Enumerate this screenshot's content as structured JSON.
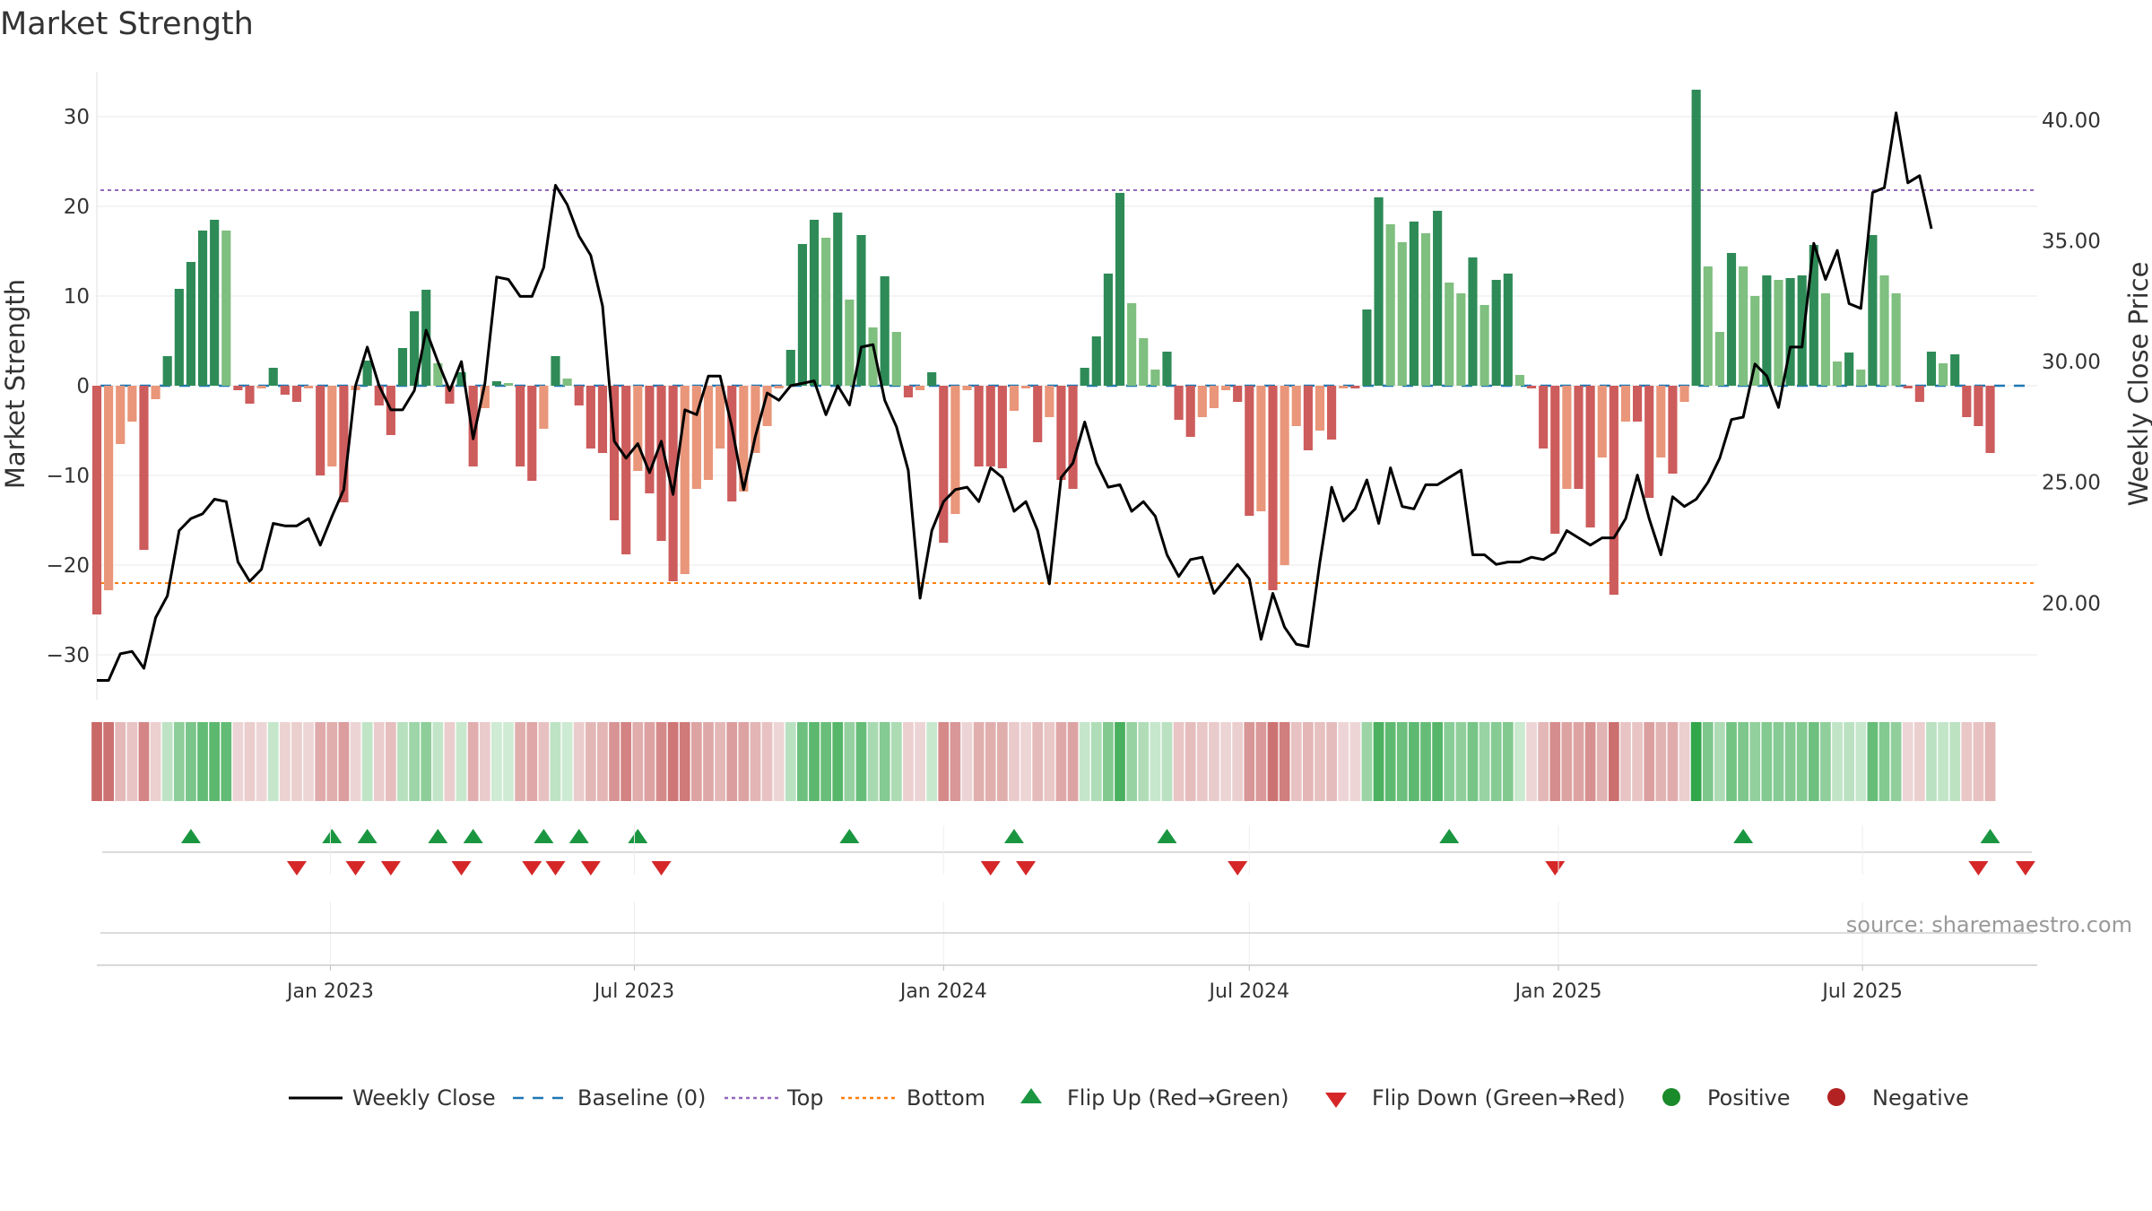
{
  "chart_data": {
    "type": "bar",
    "title": "Market Strength",
    "ylabel": "Market Strength",
    "y2label": "Weekly Close Price",
    "ylim": [
      -35,
      35
    ],
    "y2lim": [
      16,
      42
    ],
    "y_ticks": [
      30,
      20,
      10,
      0,
      -10,
      -20,
      -30
    ],
    "y_tick_labels": [
      "30",
      "20",
      "10",
      "0",
      "−10",
      "−20",
      "−30"
    ],
    "y2_ticks": [
      40,
      35,
      30,
      25,
      20
    ],
    "y2_tick_labels": [
      "40.00",
      "35.00",
      "30.00",
      "25.00",
      "20.00"
    ],
    "x_range": [
      "2022-08-15",
      "2025-10-13"
    ],
    "x_ticks": [
      "2023-01-01",
      "2023-07-01",
      "2024-01-01",
      "2024-07-01",
      "2025-01-01",
      "2025-07-01"
    ],
    "x_tick_labels": [
      "Jan 2023",
      "Jul 2023",
      "Jan 2024",
      "Jul 2024",
      "Jan 2025",
      "Jul 2025"
    ],
    "top_level": 21.8,
    "bottom_level": -22.0,
    "baseline": 0,
    "start_date": "2022-08-15",
    "week_step": 1,
    "strength": [
      -25.5,
      -22.8,
      -6.5,
      -4.0,
      -18.3,
      -1.5,
      3.3,
      10.8,
      13.8,
      17.3,
      18.5,
      17.3,
      -0.5,
      -2.0,
      -0.3,
      2.0,
      -1.0,
      -1.8,
      -0.3,
      -10.0,
      -9.0,
      -13.0,
      -0.5,
      2.8,
      -2.2,
      -5.5,
      4.2,
      8.3,
      10.7,
      2.5,
      -2.0,
      1.5,
      -9.0,
      -2.5,
      0.5,
      0.3,
      -9.0,
      -10.6,
      -4.8,
      3.3,
      0.8,
      -2.2,
      -7.0,
      -7.5,
      -15.0,
      -18.8,
      -9.5,
      -12.0,
      -17.3,
      -21.8,
      -21.0,
      -11.5,
      -10.5,
      -7.0,
      -12.9,
      -11.8,
      -7.5,
      -4.5,
      -0.3,
      4.0,
      15.8,
      18.5,
      16.5,
      19.3,
      9.6,
      16.8,
      6.5,
      12.2,
      6.0,
      -1.3,
      -0.5,
      1.5,
      -17.5,
      -14.3,
      -0.5,
      -9.0,
      -9.0,
      -9.2,
      -2.8,
      -0.3,
      -6.3,
      -3.5,
      -10.5,
      -11.5,
      2.0,
      5.5,
      12.5,
      21.5,
      9.2,
      5.3,
      1.8,
      3.8,
      -3.8,
      -5.7,
      -3.5,
      -2.5,
      -0.5,
      -1.8,
      -14.5,
      -14.0,
      -22.8,
      -20.0,
      -4.5,
      -7.2,
      -5.0,
      -6.0,
      -0.3,
      -0.3,
      8.5,
      21.0,
      18.0,
      16.0,
      18.3,
      17.0,
      19.5,
      11.5,
      10.3,
      14.3,
      9.0,
      11.8,
      12.5,
      1.2,
      -0.3,
      -7.0,
      -16.5,
      -11.5,
      -11.5,
      -15.8,
      -8.0,
      -23.3,
      -4.0,
      -4.0,
      -12.5,
      -8.0,
      -9.8,
      -1.8,
      33.0,
      13.3,
      6.0,
      14.8,
      13.3,
      10.0,
      12.3,
      11.8,
      12.0,
      12.3,
      15.7,
      10.3,
      2.7,
      3.7,
      1.8,
      16.8,
      12.3,
      10.3,
      -0.3,
      -1.8,
      3.8,
      2.5,
      3.5,
      -3.5,
      -4.5,
      -7.5
    ],
    "close": [
      16.8,
      16.8,
      17.9,
      18.0,
      17.3,
      19.4,
      20.3,
      23.0,
      23.5,
      23.7,
      24.3,
      24.2,
      21.7,
      20.9,
      21.4,
      23.3,
      23.2,
      23.2,
      23.5,
      22.4,
      23.6,
      24.7,
      29.0,
      30.6,
      29.0,
      28.0,
      28.0,
      28.8,
      31.3,
      30.0,
      28.8,
      30.0,
      26.8,
      29.1,
      33.5,
      33.4,
      32.7,
      32.7,
      33.9,
      37.3,
      36.5,
      35.2,
      34.4,
      32.3,
      26.7,
      26.0,
      26.6,
      25.4,
      26.7,
      24.5,
      28.0,
      27.8,
      29.4,
      29.4,
      27.3,
      24.7,
      26.9,
      28.7,
      28.4,
      29.0,
      29.1,
      29.2,
      27.8,
      29.0,
      28.2,
      30.6,
      30.7,
      28.4,
      27.3,
      25.5,
      20.2,
      23.0,
      24.2,
      24.7,
      24.8,
      24.2,
      25.6,
      25.2,
      23.8,
      24.2,
      23.0,
      20.8,
      25.2,
      25.8,
      27.5,
      25.8,
      24.8,
      24.9,
      23.8,
      24.2,
      23.6,
      22.0,
      21.1,
      21.8,
      21.9,
      20.4,
      21.0,
      21.6,
      21.0,
      18.5,
      20.4,
      19.0,
      18.3,
      18.2,
      21.7,
      24.8,
      23.4,
      23.9,
      25.1,
      23.3,
      25.6,
      24.0,
      23.9,
      24.9,
      24.9,
      25.2,
      25.5,
      22.0,
      22.0,
      21.6,
      21.7,
      21.7,
      21.9,
      21.8,
      22.1,
      23.0,
      22.7,
      22.4,
      22.7,
      22.7,
      23.5,
      25.3,
      23.5,
      22.0,
      24.4,
      24.0,
      24.3,
      25.0,
      26.0,
      27.6,
      27.7,
      29.9,
      29.4,
      28.1,
      30.6,
      30.6,
      34.9,
      33.4,
      34.6,
      32.4,
      32.2,
      37.0,
      37.2,
      40.3,
      37.4,
      37.7,
      35.5
    ],
    "flip_up_dates": [
      "2022-10-10",
      "2023-01-02",
      "2023-01-23",
      "2023-03-06",
      "2023-03-27",
      "2023-05-08",
      "2023-05-29",
      "2023-07-03",
      "2023-11-06",
      "2024-02-12",
      "2024-05-13",
      "2024-10-28",
      "2025-04-21",
      "2025-09-15"
    ],
    "flip_down_dates": [
      "2022-12-12",
      "2023-01-16",
      "2023-02-06",
      "2023-03-20",
      "2023-05-01",
      "2023-05-15",
      "2023-06-05",
      "2023-07-17",
      "2024-01-29",
      "2024-02-19",
      "2024-06-24",
      "2024-12-30",
      "2025-09-08",
      "2025-10-06"
    ],
    "color_scheme": {
      "positive_strong": "#2e8b57",
      "positive_weak": "#7fbf7f",
      "negative_strong": "#cd5c5c",
      "negative_weak": "#e9967a",
      "close_line": "#000000",
      "baseline": "#1f77b4",
      "top": "#9467bd",
      "bottom": "#ff7f0e",
      "flip_up": "#1a9641",
      "flip_down": "#d62728",
      "positive_dot": "#1a8a2a",
      "negative_dot": "#b22222"
    },
    "legend": {
      "placement": "bottom",
      "items": [
        {
          "label": "Weekly Close",
          "kind": "line-solid",
          "color": "#000000"
        },
        {
          "label": "Baseline (0)",
          "kind": "line-dash",
          "color": "#1f77b4"
        },
        {
          "label": "Top",
          "kind": "line-dot",
          "color": "#9467bd"
        },
        {
          "label": "Bottom",
          "kind": "line-dot",
          "color": "#ff7f0e"
        },
        {
          "label": "Flip Up (Red→Green)",
          "kind": "triangle-up",
          "color": "#1a9641"
        },
        {
          "label": "Flip Down (Green→Red)",
          "kind": "triangle-down",
          "color": "#d62728"
        },
        {
          "label": "Positive",
          "kind": "dot",
          "color": "#1a8a2a"
        },
        {
          "label": "Negative",
          "kind": "dot",
          "color": "#b22222"
        }
      ]
    },
    "grid": true
  },
  "source_text": "source: sharemaestro.com"
}
